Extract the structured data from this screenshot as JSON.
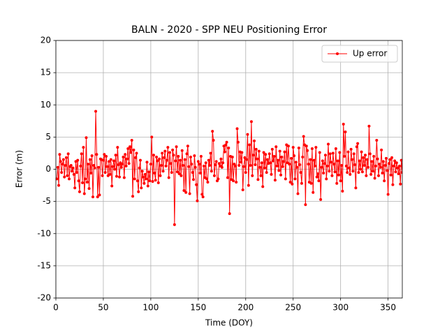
{
  "chart_data": {
    "type": "line",
    "title": "BALN - 2020 - SPP NEU Positioning Error",
    "xlabel": "Time (DOY)",
    "ylabel": "Error (m)",
    "x": [
      1,
      2,
      3,
      4,
      5,
      6,
      7,
      8,
      9,
      10,
      11,
      12,
      13,
      14,
      15,
      16,
      17,
      18,
      19,
      20,
      21,
      22,
      23,
      24,
      25,
      26,
      27,
      28,
      29,
      30,
      31,
      32,
      33,
      34,
      35,
      36,
      37,
      38,
      39,
      40,
      41,
      42,
      43,
      44,
      45,
      46,
      47,
      48,
      49,
      50,
      51,
      52,
      53,
      54,
      55,
      56,
      57,
      58,
      59,
      60,
      61,
      62,
      63,
      64,
      65,
      66,
      67,
      68,
      69,
      70,
      71,
      72,
      73,
      74,
      75,
      76,
      77,
      78,
      79,
      80,
      81,
      82,
      83,
      84,
      85,
      86,
      87,
      88,
      89,
      90,
      91,
      92,
      93,
      94,
      95,
      96,
      97,
      98,
      99,
      100,
      101,
      102,
      103,
      104,
      105,
      106,
      107,
      108,
      109,
      110,
      111,
      112,
      113,
      114,
      115,
      116,
      117,
      118,
      119,
      120,
      121,
      122,
      123,
      124,
      125,
      126,
      127,
      128,
      129,
      130,
      131,
      132,
      133,
      134,
      135,
      136,
      137,
      138,
      139,
      140,
      141,
      142,
      143,
      144,
      145,
      146,
      147,
      148,
      149,
      150,
      151,
      152,
      153,
      154,
      155,
      156,
      157,
      158,
      159,
      160,
      161,
      162,
      163,
      164,
      165,
      166,
      167,
      168,
      169,
      170,
      171,
      172,
      173,
      174,
      175,
      176,
      177,
      178,
      179,
      180,
      181,
      182,
      183,
      184,
      185,
      186,
      187,
      188,
      189,
      190,
      191,
      192,
      193,
      194,
      195,
      196,
      197,
      198,
      199,
      200,
      201,
      202,
      203,
      204,
      205,
      206,
      207,
      208,
      209,
      210,
      211,
      212,
      213,
      214,
      215,
      216,
      217,
      218,
      219,
      220,
      221,
      222,
      223,
      224,
      225,
      226,
      227,
      228,
      229,
      230,
      231,
      232,
      233,
      234,
      235,
      236,
      237,
      238,
      239,
      240,
      241,
      242,
      243,
      244,
      245,
      246,
      247,
      248,
      249,
      250,
      251,
      252,
      253,
      254,
      255,
      256,
      257,
      258,
      259,
      260,
      261,
      262,
      263,
      264,
      265,
      266,
      267,
      268,
      269,
      270,
      271,
      272,
      273,
      274,
      275,
      276,
      277,
      278,
      279,
      280,
      281,
      282,
      283,
      284,
      285,
      286,
      287,
      288,
      289,
      290,
      291,
      292,
      293,
      294,
      295,
      296,
      297,
      298,
      299,
      300,
      301,
      302,
      303,
      304,
      305,
      306,
      307,
      308,
      309,
      310,
      311,
      312,
      313,
      314,
      315,
      316,
      317,
      318,
      319,
      320,
      321,
      322,
      323,
      324,
      325,
      326,
      327,
      328,
      329,
      330,
      331,
      332,
      333,
      334,
      335,
      336,
      337,
      338,
      339,
      340,
      341,
      342,
      343,
      344,
      345,
      346,
      347,
      348,
      349,
      350,
      351,
      352,
      353,
      354,
      355,
      356,
      357,
      358,
      359,
      360,
      361,
      362,
      363,
      364,
      365
    ],
    "series": [
      {
        "name": "Up error",
        "color": "#ff0000",
        "values": [
          -1.5,
          0.3,
          -2.5,
          2.3,
          1.2,
          -0.5,
          0.8,
          1.5,
          -1.2,
          0.6,
          1.8,
          -1.0,
          2.4,
          -1.5,
          0.4,
          0.6,
          -0.3,
          0.2,
          -0.8,
          -2.9,
          1.2,
          -0.5,
          1.4,
          -1.8,
          -3.5,
          0.5,
          2.4,
          -2.1,
          3.4,
          -3.8,
          -1.5,
          4.9,
          -2.0,
          0.8,
          -3.0,
          1.5,
          -0.6,
          2.1,
          -4.3,
          0.6,
          0.2,
          9.0,
          2.3,
          -4.3,
          0.3,
          -4.0,
          1.6,
          1.5,
          -1.0,
          1.4,
          2.3,
          -0.5,
          2.0,
          0.4,
          -1.0,
          1.2,
          -0.8,
          1.5,
          -2.6,
          0.4,
          1.3,
          0.0,
          2.2,
          -1.1,
          3.4,
          0.7,
          -1.2,
          1.0,
          0.3,
          0.8,
          1.9,
          -1.3,
          2.3,
          0.5,
          1.6,
          3.2,
          0.9,
          3.5,
          2.6,
          4.5,
          -4.2,
          3.0,
          -1.5,
          1.8,
          2.5,
          -1.8,
          -3.5,
          0.2,
          1.4,
          -2.9,
          -0.3,
          -1.2,
          -2.2,
          -0.8,
          -1.5,
          1.1,
          -2.6,
          -0.4,
          -1.8,
          0.8,
          5.0,
          -1.9,
          2.2,
          -0.6,
          -1.7,
          1.9,
          1.3,
          -2.1,
          1.6,
          -1.0,
          0.6,
          2.5,
          -0.3,
          1.8,
          2.8,
          0.5,
          1.4,
          3.4,
          -1.3,
          2.6,
          0.9,
          -0.5,
          3.0,
          2.2,
          -8.6,
          1.3,
          3.5,
          -0.4,
          2.0,
          -0.7,
          1.4,
          -1.0,
          2.9,
          0.6,
          -3.3,
          1.5,
          -3.6,
          2.4,
          3.6,
          0.4,
          -3.8,
          1.9,
          0.8,
          -0.5,
          -1.6,
          2.1,
          0.3,
          -2.4,
          -4.9,
          1.2,
          0.8,
          -0.6,
          2.0,
          -3.9,
          -4.3,
          0.5,
          -1.3,
          1.0,
          -1.5,
          -2.0,
          1.4,
          0.6,
          2.5,
          -0.3,
          5.9,
          4.5,
          -1.0,
          0.7,
          1.2,
          -1.8,
          -1.5,
          0.9,
          0.5,
          1.6,
          0.3,
          1.0,
          3.6,
          2.7,
          3.8,
          4.2,
          -1.3,
          3.3,
          -6.9,
          2.0,
          -1.6,
          1.9,
          -1.8,
          0.8,
          0.5,
          -2.0,
          6.3,
          4.2,
          0.6,
          2.7,
          1.1,
          2.6,
          -3.2,
          0.4,
          1.8,
          -0.5,
          1.5,
          5.4,
          -2.5,
          3.8,
          0.6,
          7.4,
          -1.0,
          2.2,
          4.4,
          0.7,
          3.1,
          1.6,
          -1.6,
          2.8,
          0.3,
          -1.0,
          1.0,
          -2.7,
          2.6,
          0.2,
          2.3,
          -0.5,
          1.5,
          0.9,
          2.4,
          1.0,
          -0.8,
          3.1,
          1.3,
          2.0,
          -1.7,
          3.5,
          0.5,
          1.4,
          -0.2,
          2.8,
          -0.9,
          1.9,
          0.4,
          1.2,
          2.7,
          -1.5,
          3.8,
          1.0,
          3.6,
          0.8,
          -2.0,
          1.7,
          -2.3,
          3.4,
          2.1,
          -1.5,
          1.1,
          0.3,
          -3.8,
          3.3,
          0.7,
          -0.5,
          -2.2,
          1.9,
          5.1,
          3.8,
          -5.5,
          3.6,
          2.9,
          0.8,
          -2.0,
          1.5,
          -2.2,
          3.2,
          -3.6,
          1.4,
          0.5,
          3.4,
          -1.2,
          -0.7,
          -1.8,
          2.6,
          -4.7,
          0.3,
          1.3,
          -0.6,
          0.9,
          2.2,
          -1.5,
          0.5,
          3.9,
          -0.3,
          2.4,
          1.1,
          -1.0,
          2.5,
          0.8,
          -0.4,
          3.2,
          -2.2,
          1.3,
          -0.9,
          2.6,
          -1.8,
          0.6,
          -3.4,
          7.0,
          2.0,
          5.8,
          0.5,
          -0.5,
          2.7,
          0.2,
          -0.8,
          3.1,
          1.5,
          -0.3,
          2.4,
          0.7,
          -2.9,
          3.5,
          4.0,
          -0.5,
          1.3,
          0.0,
          2.7,
          -0.4,
          1.8,
          0.6,
          2.2,
          -1.0,
          1.5,
          0.3,
          6.7,
          2.4,
          -0.8,
          1.2,
          -0.3,
          2.0,
          -1.4,
          0.5,
          4.5,
          1.6,
          -1.0,
          0.8,
          0.3,
          3.0,
          -0.6,
          1.2,
          -1.8,
          0.6,
          1.7,
          -0.2,
          -3.9,
          0.9,
          1.5,
          -0.9,
          1.8,
          -2.4,
          0.5,
          1.3,
          -0.4,
          1.0,
          0.2,
          -0.7,
          0.5,
          -2.3,
          1.4,
          -0.5
        ]
      }
    ],
    "xlim": [
      0,
      365
    ],
    "ylim": [
      -20,
      20
    ],
    "xticks": [
      0,
      50,
      100,
      150,
      200,
      250,
      300,
      350
    ],
    "yticks": [
      -20,
      -15,
      -10,
      -5,
      0,
      5,
      10,
      15,
      20
    ],
    "grid": true,
    "legend": "upper right"
  }
}
